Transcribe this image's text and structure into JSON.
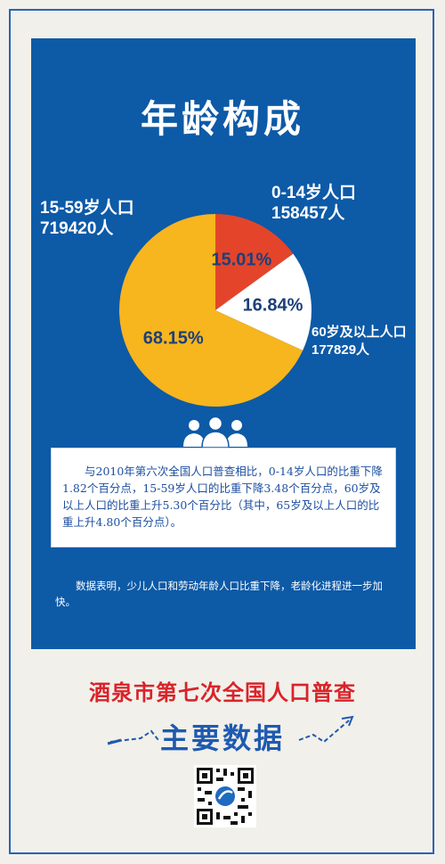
{
  "title": "年龄构成",
  "colors": {
    "panel": "#0d5aa7",
    "slice_0_14": "#e4452a",
    "slice_15_59": "#f7b51e",
    "slice_60_plus": "#ffffff",
    "census_title": "#d9232a",
    "main_data": "#1f5ab0"
  },
  "chart_data": {
    "type": "pie",
    "title": "年龄构成",
    "slices": [
      {
        "group": "0-14岁人口",
        "count": "158457人",
        "percent_label": "15.01%",
        "value": 15.01,
        "color": "#e4452a"
      },
      {
        "group": "60岁及以上人口",
        "count": "177829人",
        "percent_label": "16.84%",
        "value": 16.84,
        "color": "#ffffff"
      },
      {
        "group": "15-59岁人口",
        "count": "719420人",
        "percent_label": "68.15%",
        "value": 68.15,
        "color": "#f7b51e"
      }
    ]
  },
  "note": "与2010年第六次全国人口普查相比，0-14岁人口的比重下降1.82个百分点，15-59岁人口的比重下降3.48个百分点，60岁及以上人口的比重上升5.30个百分比（其中，65岁及以上人口的比重上升4.80个百分点）。",
  "summary": "数据表明，少儿人口和劳动年龄人口比重下降，老龄化进程进一步加快。",
  "footer": {
    "census_title": "酒泉市第七次全国人口普查",
    "main_data": "主要数据"
  },
  "icons": {
    "people": "people-group-icon",
    "qr": "qr-code-icon"
  }
}
